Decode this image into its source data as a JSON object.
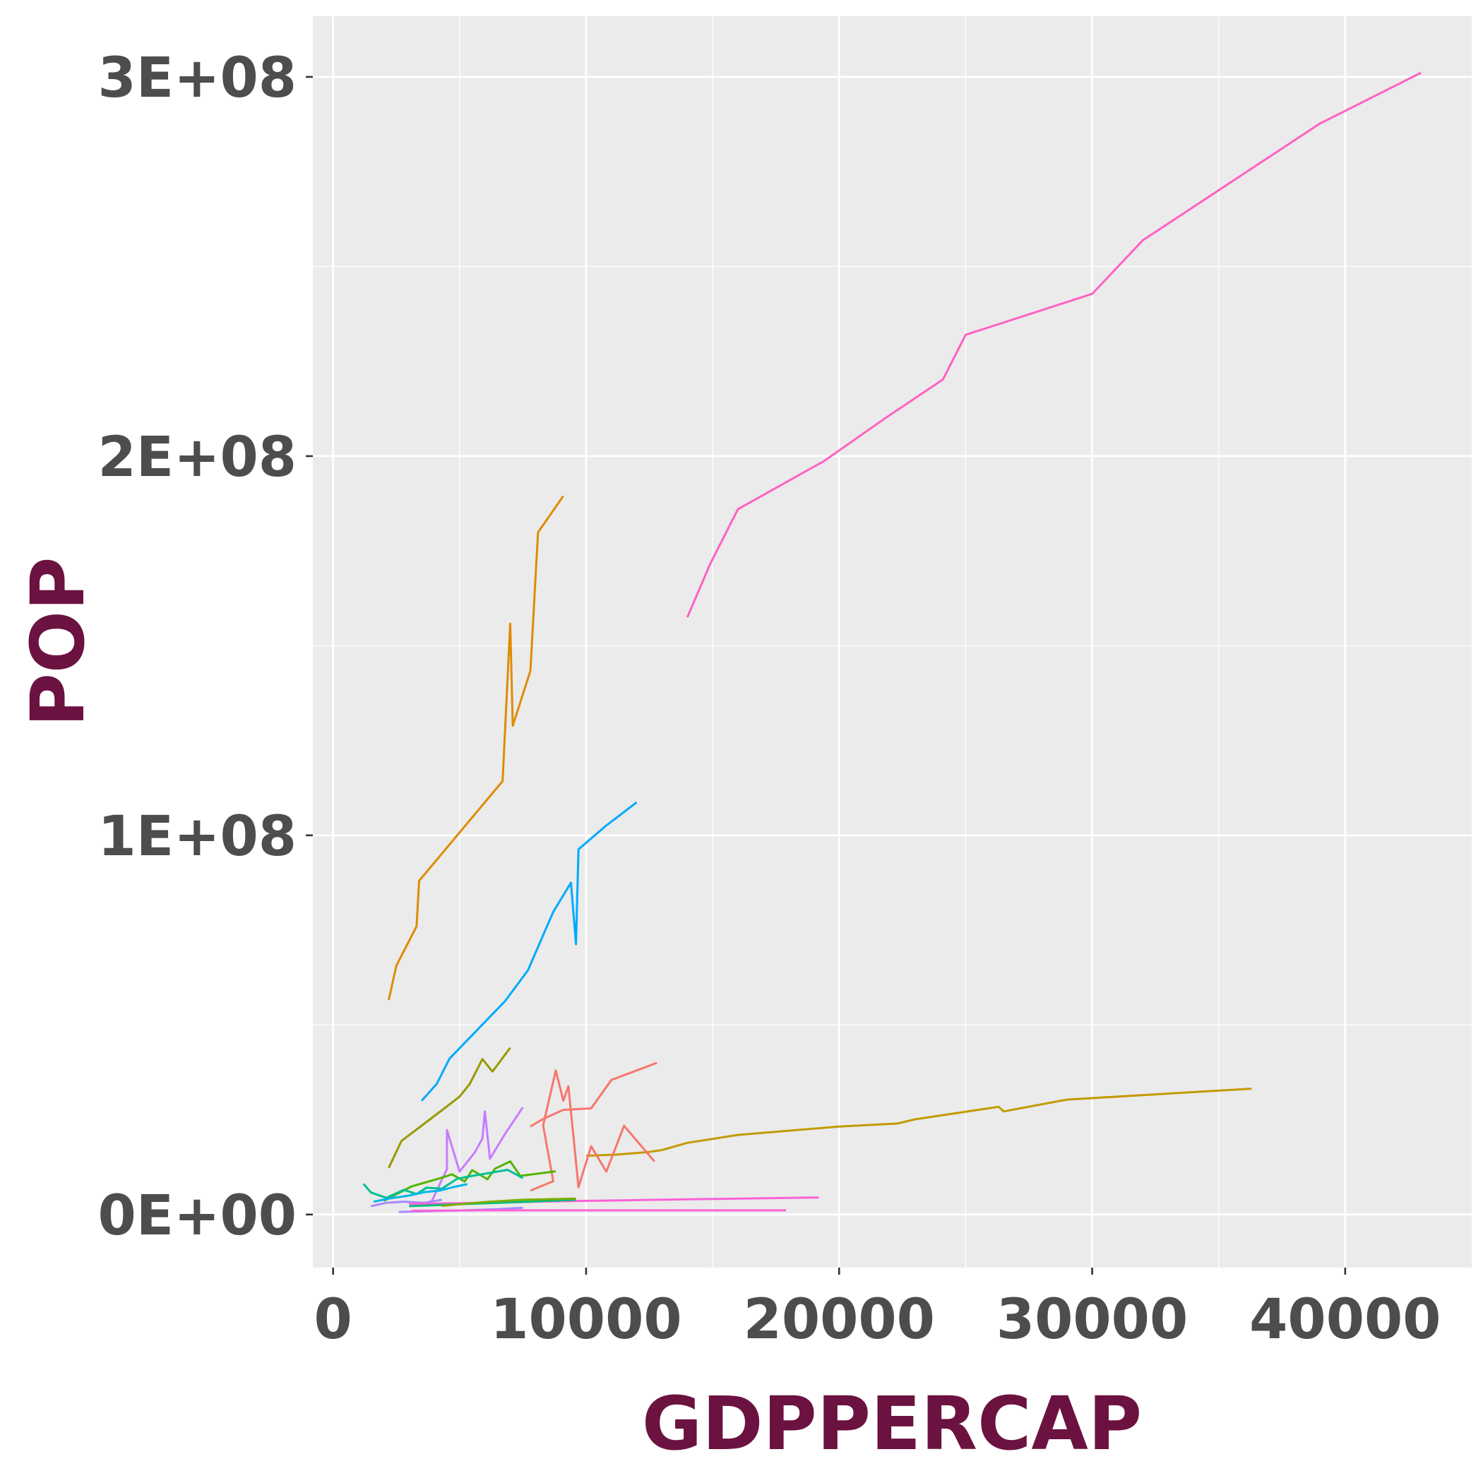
{
  "chart_data": {
    "type": "line",
    "xlabel": "GDPPERCAP",
    "ylabel": "POP",
    "xlim": [
      -800,
      45000
    ],
    "ylim": [
      -14000000,
      316000000
    ],
    "x_ticks": [
      0,
      10000,
      20000,
      30000,
      40000
    ],
    "x_tick_labels": [
      "0",
      "10000",
      "20000",
      "30000",
      "40000"
    ],
    "y_ticks": [
      0,
      100000000,
      200000000,
      300000000
    ],
    "y_tick_labels": [
      "0E+00",
      "1E+08",
      "2E+08",
      "3E+08"
    ],
    "grid": true,
    "legend": "none",
    "panel_background": "#ebebeb",
    "series": [
      {
        "color": "#ff61c3",
        "points": [
          [
            14000,
            157500000
          ],
          [
            14900,
            171500000
          ],
          [
            16000,
            186000000
          ],
          [
            19400,
            198700000
          ],
          [
            21800,
            209900000
          ],
          [
            24100,
            220200000
          ],
          [
            25000,
            232000000
          ],
          [
            30000,
            242800000
          ],
          [
            32000,
            256900000
          ],
          [
            39000,
            287700000
          ],
          [
            43000,
            301100000
          ]
        ]
      },
      {
        "color": "#de8c00",
        "points": [
          [
            2200,
            56600000
          ],
          [
            2500,
            65600000
          ],
          [
            3300,
            76000000
          ],
          [
            3400,
            88000000
          ],
          [
            6700,
            114300000
          ],
          [
            7000,
            155800000
          ],
          [
            7100,
            128900000
          ],
          [
            7800,
            143400000
          ],
          [
            8000,
            168000000
          ],
          [
            8100,
            179900000
          ],
          [
            9100,
            189500000
          ]
        ]
      },
      {
        "color": "#00a9ff",
        "points": [
          [
            3500,
            30000000
          ],
          [
            4100,
            34500000
          ],
          [
            4600,
            41100000
          ],
          [
            5700,
            48700000
          ],
          [
            6800,
            56300000
          ],
          [
            7700,
            64400000
          ],
          [
            8700,
            79800000
          ],
          [
            9400,
            87500000
          ],
          [
            9600,
            71300000
          ],
          [
            9700,
            96300000
          ],
          [
            10800,
            102600000
          ],
          [
            12000,
            108700000
          ]
        ]
      },
      {
        "color": "#c49a00",
        "points": [
          [
            10000,
            15500000
          ],
          [
            11200,
            15800000
          ],
          [
            12500,
            16500000
          ],
          [
            13000,
            17000000
          ],
          [
            14000,
            18900000
          ],
          [
            16000,
            21000000
          ],
          [
            20000,
            23200000
          ],
          [
            22300,
            24000000
          ],
          [
            23000,
            25100000
          ],
          [
            26300,
            28400000
          ],
          [
            26500,
            27200000
          ],
          [
            29000,
            30300000
          ],
          [
            36300,
            33200000
          ]
        ]
      },
      {
        "color": "#999900",
        "points": [
          [
            2200,
            12300000
          ],
          [
            2700,
            19400000
          ],
          [
            4400,
            28000000
          ],
          [
            5000,
            31100000
          ],
          [
            5400,
            34400000
          ],
          [
            5900,
            41000000
          ],
          [
            6300,
            37700000
          ],
          [
            7000,
            44000000
          ]
        ]
      },
      {
        "color": "#f8766d",
        "points": [
          [
            7800,
            6300000
          ],
          [
            8700,
            8800000
          ],
          [
            8300,
            23500000
          ],
          [
            8800,
            38000000
          ],
          [
            9100,
            30000000
          ],
          [
            9300,
            33800000
          ],
          [
            9700,
            7200000
          ],
          [
            10200,
            18000000
          ],
          [
            10800,
            11300000
          ],
          [
            11500,
            23400000
          ],
          [
            12700,
            14000000
          ]
        ]
      },
      {
        "color": "#f8766d",
        "points": [
          [
            7800,
            23200000
          ],
          [
            8300,
            25200000
          ],
          [
            9100,
            27600000
          ],
          [
            10200,
            28000000
          ],
          [
            11000,
            35500000
          ],
          [
            12800,
            40000000
          ]
        ]
      },
      {
        "color": "#c77cff",
        "points": [
          [
            3900,
            3500000
          ],
          [
            4500,
            12000000
          ],
          [
            4500,
            22300000
          ],
          [
            5000,
            11300000
          ],
          [
            5600,
            16400000
          ],
          [
            5900,
            20000000
          ],
          [
            6000,
            27200000
          ],
          [
            6200,
            14700000
          ],
          [
            6800,
            21300000
          ],
          [
            7500,
            28300000
          ]
        ]
      },
      {
        "color": "#53b400",
        "points": [
          [
            2000,
            3600000
          ],
          [
            3100,
            7400000
          ],
          [
            4300,
            9700000
          ],
          [
            4700,
            10600000
          ],
          [
            5200,
            8700000
          ],
          [
            5500,
            11700000
          ],
          [
            6100,
            9300000
          ],
          [
            6400,
            12100000
          ],
          [
            7000,
            14000000
          ],
          [
            7400,
            10200000
          ],
          [
            8800,
            11400000
          ]
        ]
      },
      {
        "color": "#00c094",
        "points": [
          [
            1200,
            8100000
          ],
          [
            1500,
            5800000
          ],
          [
            2100,
            4400000
          ],
          [
            2800,
            6500000
          ],
          [
            3300,
            5400000
          ],
          [
            3700,
            7100000
          ],
          [
            4300,
            6800000
          ],
          [
            4900,
            9400000
          ],
          [
            5500,
            10200000
          ],
          [
            6900,
            11800000
          ],
          [
            7500,
            9600000
          ]
        ]
      },
      {
        "color": "#00b6eb",
        "points": [
          [
            1600,
            3400000
          ],
          [
            2300,
            4300000
          ],
          [
            3000,
            5000000
          ],
          [
            3600,
            5900000
          ],
          [
            4200,
            6300000
          ],
          [
            4800,
            7300000
          ],
          [
            5300,
            8000000
          ]
        ]
      },
      {
        "color": "#a58aff",
        "points": [
          [
            2600,
            700000
          ],
          [
            3900,
            900000
          ],
          [
            5200,
            1100000
          ],
          [
            6500,
            1400000
          ],
          [
            7500,
            1800000
          ]
        ]
      },
      {
        "color": "#a58aff",
        "points": [
          [
            1500,
            2200000
          ],
          [
            2100,
            3100000
          ],
          [
            2800,
            3400000
          ],
          [
            3600,
            3100000
          ],
          [
            4300,
            3900000
          ]
        ]
      },
      {
        "color": "#fb61d7",
        "points": [
          [
            3000,
            2800000
          ],
          [
            6000,
            3100000
          ],
          [
            9000,
            3500000
          ],
          [
            12000,
            3800000
          ],
          [
            15000,
            4100000
          ],
          [
            19200,
            4500000
          ]
        ]
      },
      {
        "color": "#fb61d7",
        "points": [
          [
            3100,
            1000000
          ],
          [
            6000,
            1100000
          ],
          [
            9000,
            1100000
          ],
          [
            12000,
            1100000
          ],
          [
            15000,
            1100000
          ],
          [
            17900,
            1100000
          ]
        ]
      },
      {
        "color": "#00bf7d",
        "points": [
          [
            3000,
            2200000
          ],
          [
            5000,
            2700000
          ],
          [
            7000,
            3200000
          ],
          [
            9600,
            3900000
          ]
        ]
      },
      {
        "color": "#7cae00",
        "points": [
          [
            4300,
            2300000
          ],
          [
            6000,
            3300000
          ],
          [
            7500,
            3900000
          ],
          [
            9600,
            4200000
          ]
        ]
      }
    ]
  }
}
